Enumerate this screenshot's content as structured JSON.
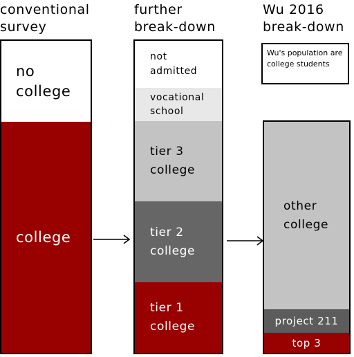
{
  "headers": {
    "col1": "conventional\nsurvey",
    "col2": "further\nbreak-down",
    "col3": "Wu 2016\nbreak-down"
  },
  "column1": {
    "no_college": "no\ncollege",
    "college": "college"
  },
  "column2": {
    "not_admitted": "not\nadmitted",
    "vocational": "vocational\nschool",
    "tier3": "tier 3\ncollege",
    "tier2": "tier 2\ncollege",
    "tier1": "tier 1\ncollege"
  },
  "column3": {
    "note": "Wu's population are\ncollege students",
    "other": "other\ncollege",
    "project211": "project 211",
    "top3": "top 3"
  },
  "colors": {
    "dark_red": "#990000",
    "light_gray": "#c3c3c3",
    "pale_gray": "#e8e8e8",
    "dark_gray": "#666666",
    "darker_gray": "#5c5c5c"
  }
}
